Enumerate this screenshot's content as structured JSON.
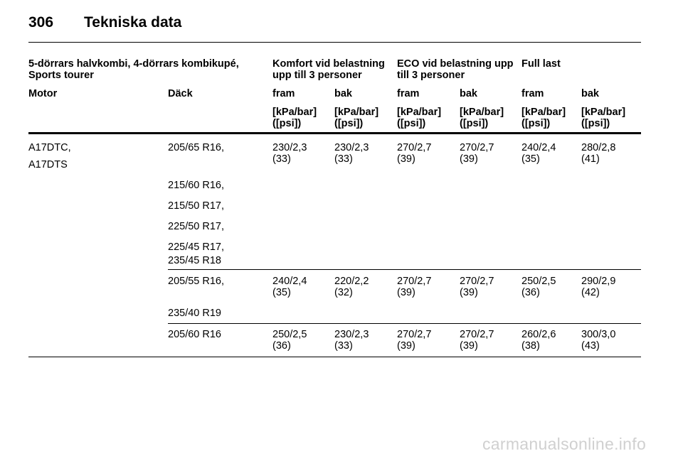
{
  "page": {
    "number": "306",
    "title": "Tekniska data"
  },
  "table": {
    "group_headers": [
      {
        "line1": "5-dörrars halvkombi, 4-dörrars kombikupé,",
        "line2": "Sports tourer"
      },
      {
        "line1": "Komfort vid belastning",
        "line2": "upp till 3 personer"
      },
      {
        "line1": "ECO vid belastning upp",
        "line2": "till 3 personer"
      },
      {
        "line1": "Full last",
        "line2": ""
      }
    ],
    "column_headers": [
      "Motor",
      "Däck",
      "fram",
      "bak",
      "fram",
      "bak",
      "fram",
      "bak"
    ],
    "unit_line1": "[kPa/bar]",
    "unit_line2": "([psi])",
    "motor": [
      "A17DTC,",
      "A17DTS"
    ],
    "groups": [
      {
        "tyres": [
          "205/65 R16,",
          "215/60 R16,",
          "215/50 R17,",
          "225/50 R17,",
          "225/45 R17,",
          "235/45 R18"
        ],
        "pressures": [
          {
            "bar": "230/2,3",
            "psi": "(33)"
          },
          {
            "bar": "230/2,3",
            "psi": "(33)"
          },
          {
            "bar": "270/2,7",
            "psi": "(39)"
          },
          {
            "bar": "270/2,7",
            "psi": "(39)"
          },
          {
            "bar": "240/2,4",
            "psi": "(35)"
          },
          {
            "bar": "280/2,8",
            "psi": "(41)"
          }
        ]
      },
      {
        "tyres": [
          "205/55 R16,",
          "235/40 R19"
        ],
        "pressures": [
          {
            "bar": "240/2,4",
            "psi": "(35)"
          },
          {
            "bar": "220/2,2",
            "psi": "(32)"
          },
          {
            "bar": "270/2,7",
            "psi": "(39)"
          },
          {
            "bar": "270/2,7",
            "psi": "(39)"
          },
          {
            "bar": "250/2,5",
            "psi": "(36)"
          },
          {
            "bar": "290/2,9",
            "psi": "(42)"
          }
        ]
      },
      {
        "tyres": [
          "205/60 R16"
        ],
        "pressures": [
          {
            "bar": "250/2,5",
            "psi": "(36)"
          },
          {
            "bar": "230/2,3",
            "psi": "(33)"
          },
          {
            "bar": "270/2,7",
            "psi": "(39)"
          },
          {
            "bar": "270/2,7",
            "psi": "(39)"
          },
          {
            "bar": "260/2,6",
            "psi": "(38)"
          },
          {
            "bar": "300/3,0",
            "psi": "(43)"
          }
        ]
      }
    ]
  },
  "watermark": "carmanualsonline.info"
}
